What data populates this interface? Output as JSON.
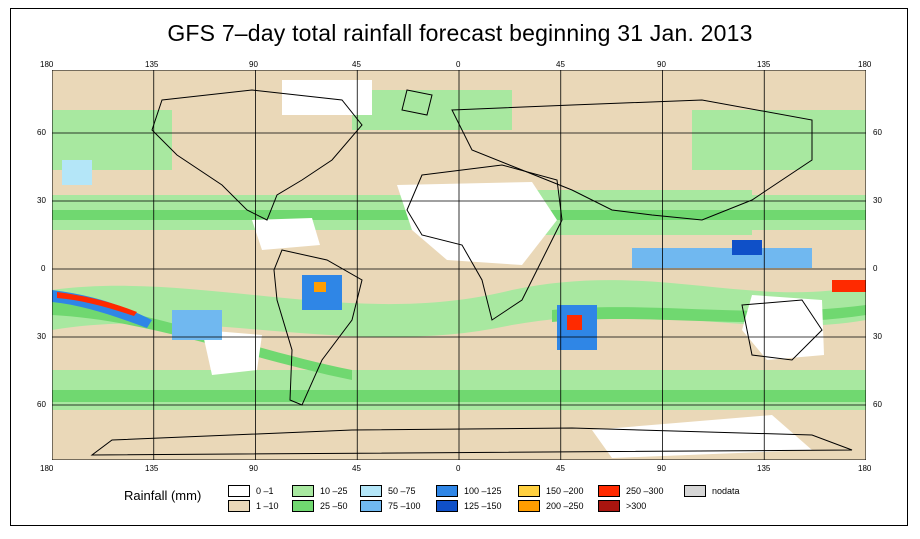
{
  "title": "GFS 7–day total rainfall forecast beginning 31 Jan. 2013",
  "lon_ticks": [
    "180",
    "135",
    "90",
    "45",
    "0",
    "45",
    "90",
    "135",
    "180"
  ],
  "lat_ticks": [
    "60",
    "30",
    "0",
    "30",
    "60"
  ],
  "legend": {
    "label": "Rainfall (mm)",
    "items": [
      {
        "text": "0 –1",
        "color": "#ffffff"
      },
      {
        "text": "1 –10",
        "color": "#ead8b8"
      },
      {
        "text": "10 –25",
        "color": "#a8e8a0"
      },
      {
        "text": "25 –50",
        "color": "#70d870"
      },
      {
        "text": "50 –75",
        "color": "#b4e6f8"
      },
      {
        "text": "75 –100",
        "color": "#70b8f0"
      },
      {
        "text": "100 –125",
        "color": "#2f86e6"
      },
      {
        "text": "125 –150",
        "color": "#0f50c8"
      },
      {
        "text": "150 –200",
        "color": "#ffd040"
      },
      {
        "text": "200 –250",
        "color": "#ff9d00"
      },
      {
        "text": "250 –300",
        "color": "#ff2a00"
      },
      {
        "text": ">300",
        "color": "#a8150f"
      },
      {
        "text": "nodata",
        "color": "#d6d6d6"
      }
    ]
  }
}
